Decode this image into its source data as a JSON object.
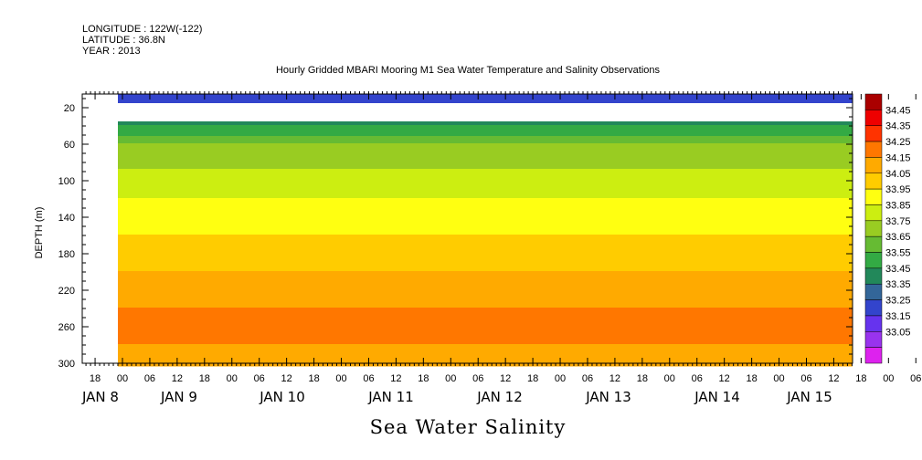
{
  "header": {
    "longitude": "LONGITUDE : 122W(-122)",
    "latitude": "LATITUDE : 36.8N",
    "year": "YEAR : 2013"
  },
  "chart_data": {
    "type": "heatmap",
    "title": "Hourly Gridded MBARI Mooring M1 Sea Water Temperature and Salinity Observations",
    "xlabel": "Sea Water Salinity",
    "ylabel": "DEPTH (m)",
    "ylim": [
      300,
      5
    ],
    "y_ticks": [
      20,
      60,
      100,
      140,
      180,
      220,
      260,
      300
    ],
    "x_hour_ticks": [
      "18",
      "00",
      "06",
      "12",
      "18",
      "00",
      "06",
      "12",
      "18",
      "00",
      "06",
      "12",
      "18",
      "00",
      "06",
      "12",
      "18",
      "00",
      "06",
      "12",
      "18",
      "00",
      "06",
      "12",
      "18",
      "00",
      "06",
      "12",
      "18",
      "00",
      "06",
      "12"
    ],
    "x_day_labels": [
      "JAN  8",
      "JAN  9",
      "JAN 10",
      "JAN 11",
      "JAN 12",
      "JAN 13",
      "JAN 14",
      "JAN 15"
    ],
    "colorbar": {
      "levels": [
        33.05,
        33.15,
        33.25,
        33.35,
        33.45,
        33.55,
        33.65,
        33.75,
        33.85,
        33.95,
        34.05,
        34.15,
        34.25,
        34.35,
        34.45
      ],
      "colors": [
        "#dd22ee",
        "#9933ee",
        "#6633ee",
        "#3344cc",
        "#336699",
        "#22885a",
        "#33aa44",
        "#66bb33",
        "#99cc22",
        "#ccee11",
        "#ffff11",
        "#ffcc00",
        "#ffaa00",
        "#ff7700",
        "#ff3300",
        "#ee0000",
        "#aa0000"
      ]
    },
    "depth_profile": [
      {
        "depth": 10,
        "salinity": 33.3
      },
      {
        "depth": 35,
        "salinity": 33.5
      },
      {
        "depth": 60,
        "salinity": 33.75
      },
      {
        "depth": 100,
        "salinity": 33.9
      },
      {
        "depth": 140,
        "salinity": 34.0
      },
      {
        "depth": 180,
        "salinity": 34.1
      },
      {
        "depth": 220,
        "salinity": 34.2
      },
      {
        "depth": 260,
        "salinity": 34.3
      },
      {
        "depth": 300,
        "salinity": 34.2
      }
    ],
    "grid": false,
    "legend": "right"
  }
}
